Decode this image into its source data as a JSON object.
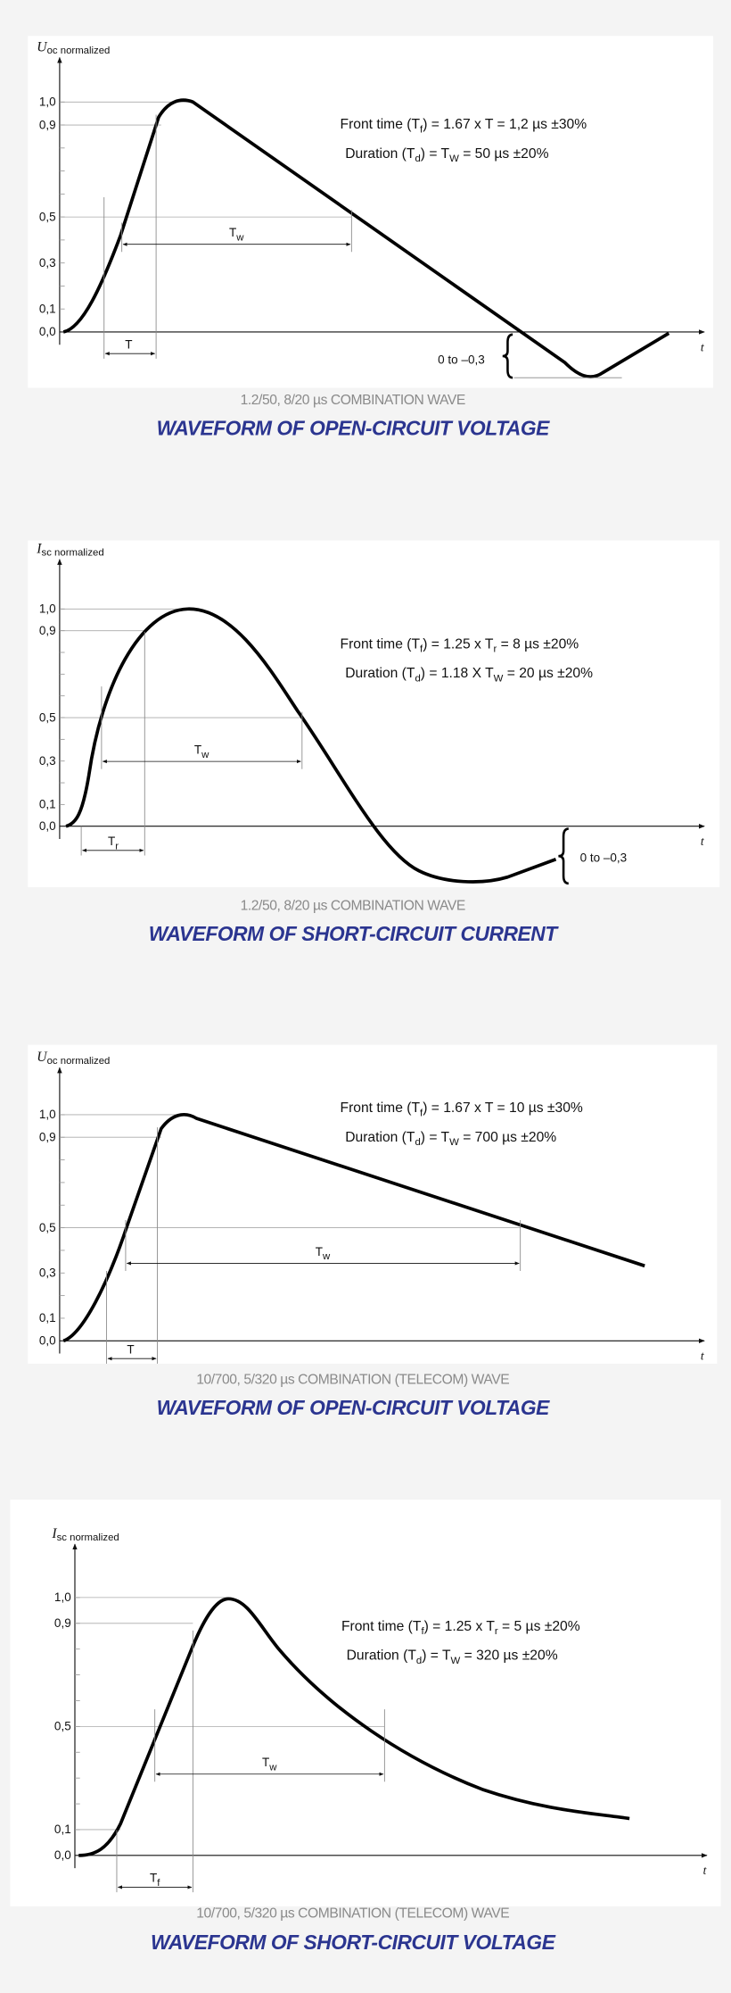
{
  "panels": [
    {
      "y_symbol": "U",
      "y_subscript": "oc normalized",
      "yticks": [
        "1,0",
        "0,9",
        "0,5",
        "0,3",
        "0,1",
        "0,0"
      ],
      "x_label": "t",
      "front_time": [
        "Front time (T",
        "f",
        ") =  1.67 x T = 1,2 µs ±30%"
      ],
      "duration": [
        "Duration (T",
        "d",
        ") =     T",
        "W",
        "    = 50 µs ±20%"
      ],
      "rise_label": [
        "T"
      ],
      "width_label": [
        "T",
        "w"
      ],
      "undershoot": "0 to –0,3",
      "caption": "1.2/50, 8/20 µs COMBINATION WAVE",
      "title": "WAVEFORM OF OPEN-CIRCUIT VOLTAGE"
    },
    {
      "y_symbol": "I",
      "y_subscript": "sc normalized",
      "yticks": [
        "1,0",
        "0,9",
        "0,5",
        "0,3",
        "0,1",
        "0,0"
      ],
      "x_label": "t",
      "front_time": [
        "Front time (T",
        "f",
        ") =  1.25 x T",
        "r",
        "  = 8 µs ±20%"
      ],
      "duration": [
        "Duration (T",
        "d",
        ") = 1.18 X T",
        "W",
        " = 20 µs ±20%"
      ],
      "rise_label": [
        "T",
        "r"
      ],
      "width_label": [
        "T",
        "w"
      ],
      "undershoot": "0 to –0,3",
      "caption": "1.2/50, 8/20 µs COMBINATION WAVE",
      "title": "WAVEFORM OF SHORT-CIRCUIT CURRENT"
    },
    {
      "y_symbol": "U",
      "y_subscript": "oc normalized",
      "yticks": [
        "1,0",
        "0,9",
        "0,5",
        "0,3",
        "0,1",
        "0,0"
      ],
      "x_label": "t",
      "front_time": [
        "Front time (T",
        "f",
        ") =  1.67 x T  =  10 µs ±30%"
      ],
      "duration": [
        "Duration (T",
        "d",
        ") =      T",
        "W",
        "     = 700 µs ±20%"
      ],
      "rise_label": [
        "T"
      ],
      "width_label": [
        "T",
        "w"
      ],
      "caption": "10/700, 5/320 µs COMBINATION (TELECOM) WAVE",
      "title": "WAVEFORM OF OPEN-CIRCUIT VOLTAGE"
    },
    {
      "y_symbol": "I",
      "y_subscript": "sc normalized",
      "yticks": [
        "1,0",
        "0,9",
        "0,5",
        "0,1",
        "0,0"
      ],
      "x_label": "t",
      "front_time": [
        "Front time (T",
        "f",
        ") =  1.25 x T",
        "r",
        "  = 5 µs ±20%"
      ],
      "duration": [
        "Duration (T",
        "d",
        ") =      T",
        "W",
        "     = 320 µs ±20%"
      ],
      "rise_label": [
        "T",
        "f"
      ],
      "width_label": [
        "T",
        "w"
      ],
      "caption": "10/700, 5/320 µs COMBINATION (TELECOM) WAVE",
      "title": "WAVEFORM OF SHORT-CIRCUIT VOLTAGE"
    }
  ]
}
